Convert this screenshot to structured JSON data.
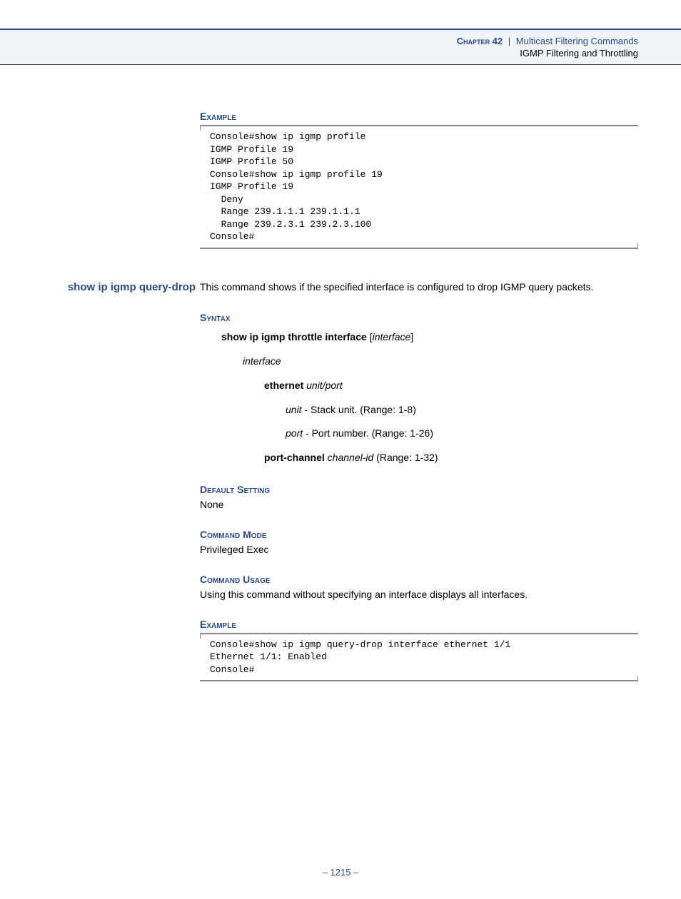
{
  "header": {
    "chapter_label": "Chapter 42",
    "separator": "|",
    "chapter_title": "Multicast Filtering Commands",
    "subtitle": "IGMP Filtering and Throttling"
  },
  "section1": {
    "heading": "Example",
    "code": "Console#show ip igmp profile\nIGMP Profile 19\nIGMP Profile 50\nConsole#show ip igmp profile 19\nIGMP Profile 19\n  Deny\n  Range 239.1.1.1 239.1.1.1\n  Range 239.2.3.1 239.2.3.100\nConsole#"
  },
  "command": {
    "name": "show ip igmp query-drop",
    "description": "This command shows if the specified interface is configured to drop IGMP query packets."
  },
  "syntax": {
    "heading": "Syntax",
    "line": {
      "cmd": "show ip igmp throttle interface",
      "arg": "interface"
    },
    "interface_label": "interface",
    "ethernet": {
      "kw": "ethernet",
      "arg": "unit/port"
    },
    "unit": {
      "name": "unit",
      "desc": " - Stack unit. (Range: 1-8)"
    },
    "port": {
      "name": "port",
      "desc": " - Port number. (Range: 1-26)"
    },
    "portchannel": {
      "kw": "port-channel",
      "arg": "channel-id",
      "desc": " (Range: 1-32)"
    }
  },
  "default_setting": {
    "heading": "Default Setting",
    "value": "None"
  },
  "command_mode": {
    "heading": "Command Mode",
    "value": "Privileged Exec"
  },
  "command_usage": {
    "heading": "Command Usage",
    "value": "Using this command without specifying an interface displays all interfaces."
  },
  "section2": {
    "heading": "Example",
    "code": "Console#show ip igmp query-drop interface ethernet 1/1\nEthernet 1/1: Enabled\nConsole#"
  },
  "page_number": "– 1215 –"
}
